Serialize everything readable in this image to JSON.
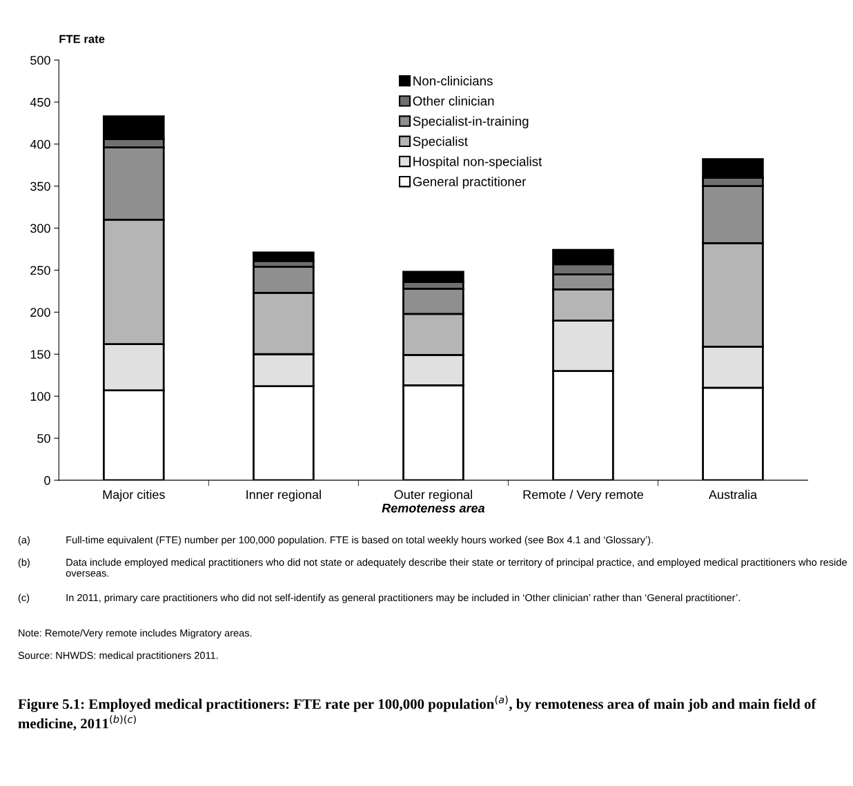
{
  "chart_data": {
    "type": "bar",
    "stacked": true,
    "title": "Figure 5.1: Employed medical practitioners: FTE rate per 100,000 population$^{(a)}$, by remoteness area of main job and main field of medicine, 2011$^{(b)(c)}$",
    "ylabel": "FTE rate",
    "xlabel": "Remoteness area",
    "categories": [
      "Major cities",
      "Inner regional",
      "Outer regional",
      "Remote / Very remote",
      "Australia"
    ],
    "series": [
      {
        "name": "General practitioner",
        "color": "#ffffff",
        "values": [
          107,
          112,
          113,
          130,
          110
        ]
      },
      {
        "name": "Hospital non-specialist",
        "color": "#e0e0e0",
        "values": [
          55,
          38,
          36,
          60,
          49
        ]
      },
      {
        "name": "Specialist",
        "color": "#b5b5b5",
        "values": [
          148,
          73,
          49,
          37,
          123
        ]
      },
      {
        "name": "Specialist-in-training",
        "color": "#8f8f8f",
        "values": [
          86,
          31,
          30,
          18,
          68
        ]
      },
      {
        "name": "Other clinician",
        "color": "#707070",
        "values": [
          10,
          7,
          8,
          12,
          10
        ]
      },
      {
        "name": "Non-clinicians",
        "color": "#000000",
        "values": [
          27,
          10,
          12,
          17,
          22
        ]
      }
    ],
    "ylim": [
      0,
      500
    ],
    "yticks": [
      0,
      50,
      100,
      150,
      200,
      250,
      300,
      350,
      400,
      450,
      500
    ],
    "grid": false,
    "legend": "top",
    "annotations": [
      "(a)\tFull-time equivalent (FTE) number per 100,000 population. FTE is based on total weekly hours worked (see Box 4.1 and ‘Glossary’).",
      "(b)\tData include employed medical practitioners who did not state or adequately describe their state or territory of principal practice, and employed medical practitioners who reside overseas.",
      "(c)\tIn 2011, primary care practitioners who did not self-identify as general practitioners may be included in ‘Other clinician’ rather than ‘General practitioner’.",
      "Note: Remote/Very remote includes Migratory areas.",
      "Source: NHWDS: medical practitioners 2011."
    ]
  }
}
